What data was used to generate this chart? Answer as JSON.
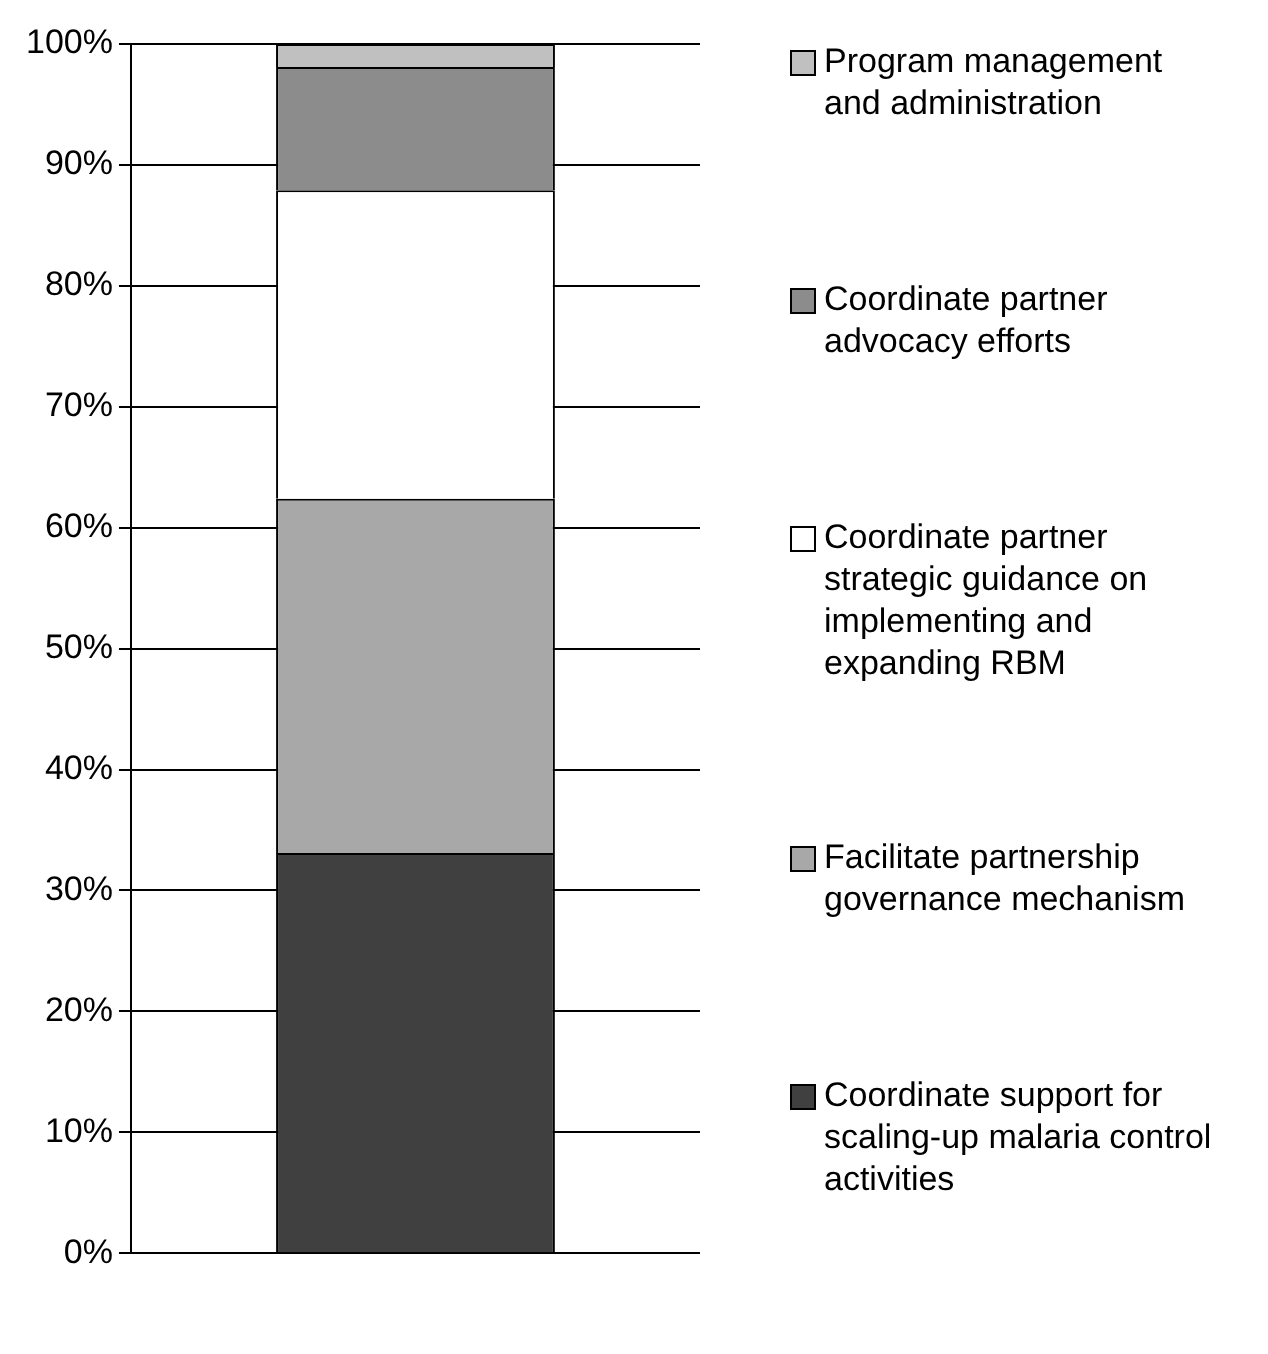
{
  "chart_data": {
    "type": "bar",
    "stacked": true,
    "categories": [
      null
    ],
    "ylim": [
      0,
      100
    ],
    "yticks": [
      {
        "value": 0,
        "label": "0%"
      },
      {
        "value": 10,
        "label": "10%"
      },
      {
        "value": 20,
        "label": "20%"
      },
      {
        "value": 30,
        "label": "30%"
      },
      {
        "value": 40,
        "label": "40%"
      },
      {
        "value": 50,
        "label": "50%"
      },
      {
        "value": 60,
        "label": "60%"
      },
      {
        "value": 70,
        "label": "70%"
      },
      {
        "value": 80,
        "label": "80%"
      },
      {
        "value": 90,
        "label": "90%"
      },
      {
        "value": 100,
        "label": "100%"
      }
    ],
    "grid": "y",
    "legend": "right",
    "series": [
      {
        "name": "Coordinate support for scaling-up malaria control activities",
        "color": "#404040",
        "values": [
          33.1
        ]
      },
      {
        "name": "Facilitate partnership governance mechanism",
        "color": "#a8a8a8",
        "values": [
          29.3
        ]
      },
      {
        "name": "Coordinate partner strategic guidance on implementing and expanding RBM",
        "color": "#ffffff",
        "values": [
          25.5
        ]
      },
      {
        "name": "Coordinate partner advocacy efforts",
        "color": "#8c8c8c",
        "values": [
          10.2
        ]
      },
      {
        "name": "Program management and administration",
        "color": "#c0c0c0",
        "values": [
          1.9
        ]
      }
    ]
  }
}
